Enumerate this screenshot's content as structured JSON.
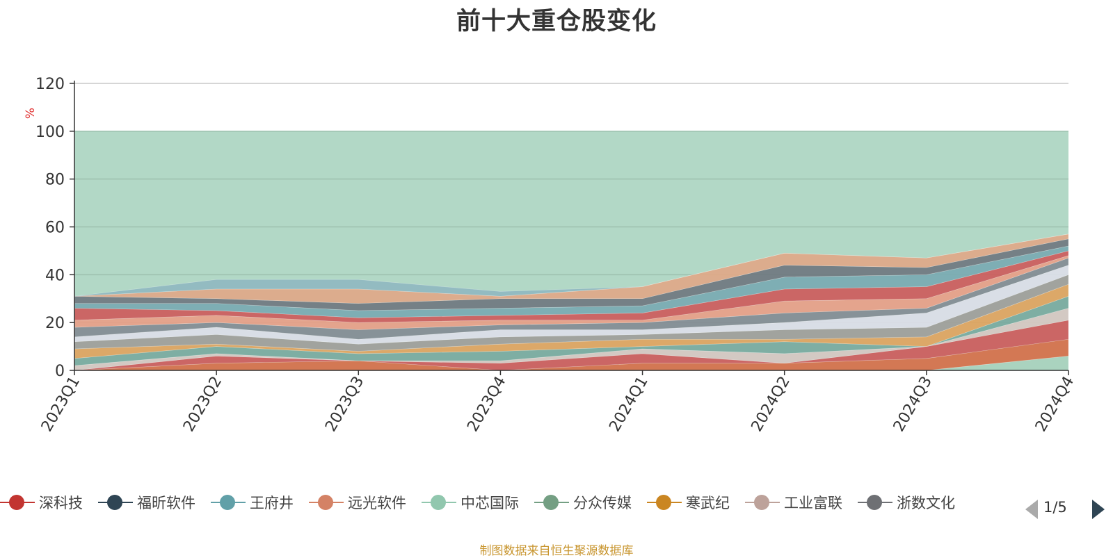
{
  "chart_data": {
    "type": "area",
    "title": "前十大重仓股变化",
    "ylabel": "%",
    "ylim": [
      0,
      120
    ],
    "yticks": [
      0,
      20,
      40,
      60,
      80,
      100,
      120
    ],
    "grid": true,
    "background_band": {
      "value": 100,
      "color": "#b2d8c6"
    },
    "categories": [
      "2023Q1",
      "2023Q2",
      "2023Q3",
      "2023Q4",
      "2024Q1",
      "2024Q2",
      "2024Q3",
      "2024Q4"
    ],
    "stack_boundaries": [
      {
        "color": "#a9d2be",
        "values": [
          0,
          0,
          0,
          0,
          0,
          0,
          0,
          6
        ]
      },
      {
        "color": "#d6704a",
        "values": [
          0,
          3,
          4,
          0,
          3,
          3,
          5,
          13
        ]
      },
      {
        "color": "#cd5c5c",
        "values": [
          0,
          6,
          4,
          3,
          7,
          3,
          10,
          21
        ]
      },
      {
        "color": "#d6c8c2",
        "values": [
          2,
          7,
          4,
          4,
          9,
          7,
          10,
          26
        ]
      },
      {
        "color": "#7aaaa0",
        "values": [
          5,
          10,
          7,
          8,
          10,
          12,
          10,
          31
        ]
      },
      {
        "color": "#e0a460",
        "values": [
          9,
          11,
          8,
          11,
          13,
          13,
          14,
          36
        ]
      },
      {
        "color": "#a09e9a",
        "values": [
          12,
          15,
          11,
          14,
          15,
          17,
          18,
          40
        ]
      },
      {
        "color": "#dcdee8",
        "values": [
          14,
          18,
          13,
          17,
          17,
          20,
          24,
          44
        ]
      },
      {
        "color": "#838c94",
        "values": [
          18,
          20,
          17,
          19,
          20,
          24,
          26,
          47
        ]
      },
      {
        "color": "#e8a088",
        "values": [
          21,
          23,
          20,
          21,
          21,
          29,
          30,
          48
        ]
      },
      {
        "color": "#cd5c5c",
        "values": [
          26,
          25,
          22,
          23,
          24,
          34,
          35,
          50
        ]
      },
      {
        "color": "#7aaab2",
        "values": [
          28,
          28,
          25,
          26,
          27,
          39,
          40,
          52
        ]
      },
      {
        "color": "#707880",
        "values": [
          31,
          30,
          28,
          30,
          30,
          44,
          43,
          55
        ]
      },
      {
        "color": "#e0a888",
        "values": [
          31,
          34,
          34,
          31,
          35,
          49,
          47,
          57
        ]
      },
      {
        "color": "#90b8c0",
        "values": [
          31,
          38,
          38,
          33,
          35,
          49,
          47,
          57
        ]
      }
    ]
  },
  "legend": {
    "items": [
      {
        "label": "深科技",
        "color": "#c23531"
      },
      {
        "label": "福昕软件",
        "color": "#2f4554"
      },
      {
        "label": "王府井",
        "color": "#61a0a8"
      },
      {
        "label": "远光软件",
        "color": "#d48265"
      },
      {
        "label": "中芯国际",
        "color": "#91c7ae"
      },
      {
        "label": "分众传媒",
        "color": "#749f83"
      },
      {
        "label": "寒武纪",
        "color": "#ca8622"
      },
      {
        "label": "工业富联",
        "color": "#bda29a"
      },
      {
        "label": "浙数文化",
        "color": "#6e7074"
      }
    ],
    "page": "1/5"
  },
  "source": "制图数据来自恒生聚源数据库"
}
